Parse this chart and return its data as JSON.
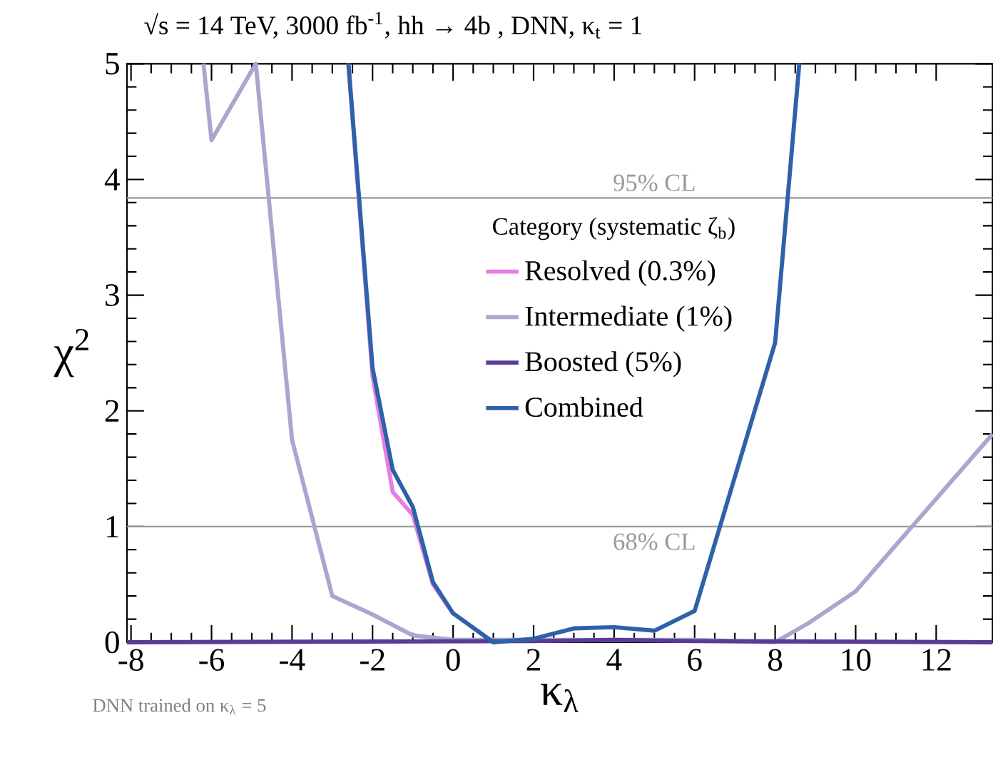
{
  "chart_data": {
    "type": "line",
    "title": "√s = 14 TeV, 3000 fb$^{-1}$, hh → 4b , DNN, κ$_{t}$ = 1",
    "xlabel": "κ$_{λ}$",
    "ylabel": "χ$^{2}$",
    "legend_title": "Category (systematic ζ$_{b}$)",
    "annotations": [
      "DNN trained on κ$_{λ}$ = 5"
    ],
    "xlim": [
      -8.1,
      13.4
    ],
    "ylim": [
      0,
      5
    ],
    "xticks": [
      -8,
      -6,
      -4,
      -2,
      0,
      2,
      4,
      6,
      8,
      10,
      12
    ],
    "yticks": [
      0,
      1,
      2,
      3,
      4,
      5
    ],
    "grid": false,
    "legend": "center",
    "line_style": "solid",
    "ref_lines": [
      {
        "axis": "y",
        "value": 3.84,
        "label": "95% CL",
        "color": "#999999"
      },
      {
        "axis": "y",
        "value": 1,
        "label": "68% CL",
        "color": "#999999"
      }
    ],
    "series": [
      {
        "name": "Resolved (0.3%)",
        "color": "#e87fe0",
        "x": [
          -2.6,
          -2,
          -1.5,
          -1,
          -0.5,
          0
        ],
        "values": [
          5,
          2.3,
          1.3,
          1.1,
          0.5,
          0.25
        ]
      },
      {
        "name": "Intermediate (1%)",
        "color": "#a9a6d0",
        "x": [
          -6.2,
          -6,
          -4.9,
          -4,
          -3,
          -2,
          -1,
          0,
          2,
          4,
          6,
          8,
          8.85,
          10,
          13.4
        ],
        "values": [
          5,
          4.34,
          5,
          1.75,
          0.4,
          0.24,
          0.06,
          0.02,
          0.02,
          0.02,
          0.02,
          0,
          0.17,
          0.44,
          1.8
        ]
      },
      {
        "name": "Boosted (5%)",
        "color": "#5a3c96",
        "x": [
          -8.1,
          2,
          4,
          6,
          13.4
        ],
        "values": [
          0,
          0.01,
          0.02,
          0.01,
          0
        ]
      },
      {
        "name": "Combined",
        "color": "#2e62a8",
        "x": [
          -2.6,
          -2,
          -1.5,
          -1,
          -0.5,
          0,
          1,
          2,
          3,
          4,
          5,
          6,
          8,
          8.6
        ],
        "values": [
          5,
          2.37,
          1.49,
          1.17,
          0.52,
          0.25,
          0,
          0.03,
          0.12,
          0.13,
          0.1,
          0.27,
          2.59,
          5
        ]
      }
    ]
  }
}
